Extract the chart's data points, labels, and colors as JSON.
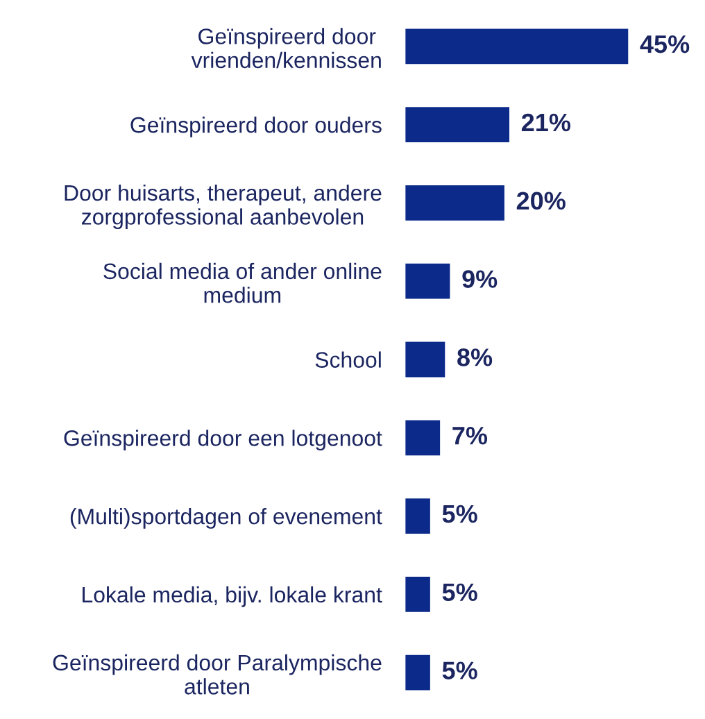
{
  "chart_data": {
    "type": "bar",
    "orientation": "horizontal",
    "categories": [
      "Geïnspireerd door\nvrienden/kennissen",
      "Geïnspireerd door ouders",
      "Door huisarts, therapeut, andere\nzorgprofessional aanbevolen",
      "Social media of ander online\nmedium",
      "School",
      "Geïnspireerd door een lotgenoot",
      "(Multi)sportdagen of evenement",
      "Lokale media, bijv. lokale krant",
      "Geïnspireerd door Paralympische\natleten"
    ],
    "values": [
      45,
      21,
      20,
      9,
      8,
      7,
      5,
      5,
      5
    ],
    "color": "#0b2a8a",
    "value_labels": [
      "45%",
      "21%",
      "20%",
      "9%",
      "8%",
      "7%",
      "5%",
      "5%",
      "5%"
    ],
    "grid": false,
    "legend": false
  }
}
